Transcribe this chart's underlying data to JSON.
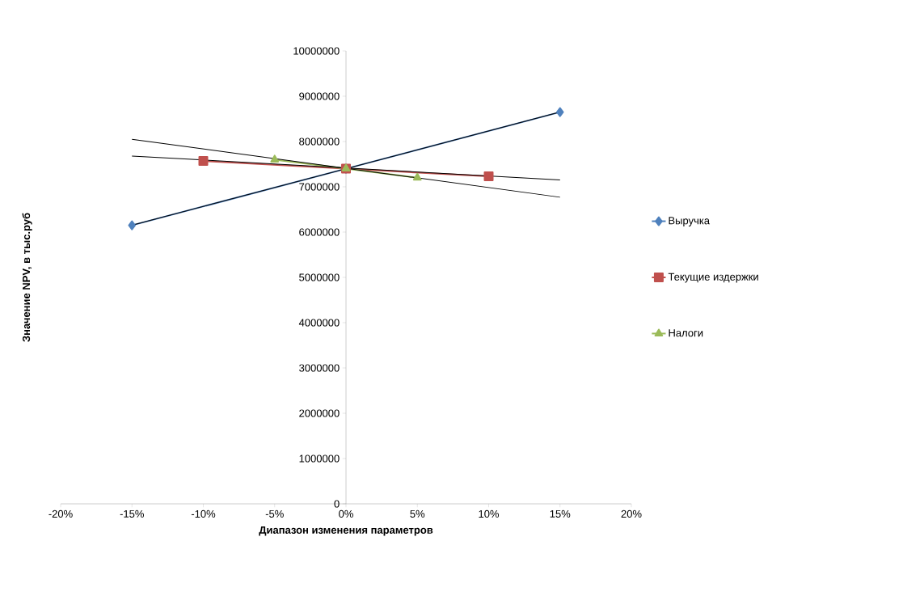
{
  "chart_data": {
    "type": "line",
    "xlabel": "Диапазон изменения параметров",
    "ylabel": "Значение NPV, в тыс.руб",
    "series": [
      {
        "name": "Выручка",
        "color": "#4f81bd",
        "marker": "diamond",
        "x": [
          -0.15,
          0,
          0.15
        ],
        "values": [
          6150000,
          7400000,
          8650000
        ]
      },
      {
        "name": "Текущие издержки",
        "color": "#c0504d",
        "marker": "square",
        "x": [
          -0.1,
          0,
          0.1
        ],
        "values": [
          7570000,
          7400000,
          7230000
        ]
      },
      {
        "name": "Налоги",
        "color": "#9bbb59",
        "marker": "triangle",
        "x": [
          -0.05,
          0,
          0.05
        ],
        "values": [
          7600000,
          7400000,
          7200000
        ]
      },
      {
        "type": "line",
        "color": "#000000",
        "marker": "none",
        "x": [
          -0.15,
          0.15
        ],
        "values": [
          6150000,
          8650000
        ]
      },
      {
        "type": "line",
        "color": "#000000",
        "marker": "none",
        "x": [
          -0.15,
          0.15
        ],
        "values": [
          7680000,
          7150000
        ]
      },
      {
        "type": "line",
        "color": "#000000",
        "marker": "none",
        "x": [
          -0.15,
          0.15
        ],
        "values": [
          8050000,
          6770000
        ]
      }
    ],
    "xlim": [
      -0.2,
      0.2
    ],
    "xticks": [
      {
        "value": -0.2,
        "label": "-20%"
      },
      {
        "value": -0.15,
        "label": "-15%"
      },
      {
        "value": -0.1,
        "label": "-10%"
      },
      {
        "value": -0.05,
        "label": "-5%"
      },
      {
        "value": 0,
        "label": "0%"
      },
      {
        "value": 0.05,
        "label": "5%"
      },
      {
        "value": 0.1,
        "label": "10%"
      },
      {
        "value": 0.15,
        "label": "15%"
      },
      {
        "value": 0.2,
        "label": "20%"
      }
    ],
    "ylim": [
      0,
      10000000
    ],
    "yticks": [
      0,
      1000000,
      2000000,
      3000000,
      4000000,
      5000000,
      6000000,
      7000000,
      8000000,
      9000000,
      10000000
    ],
    "legend": "right",
    "line_style": "solid"
  }
}
